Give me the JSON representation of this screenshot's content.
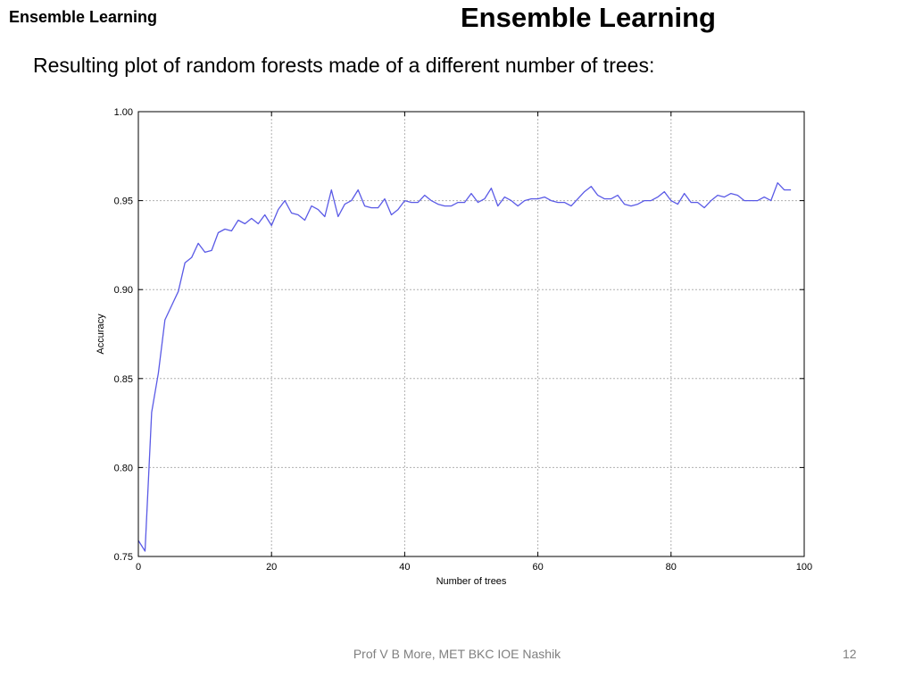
{
  "slide": {
    "corner_title": "Ensemble Learning",
    "title": "Ensemble Learning",
    "subtitle": "Resulting plot of random forests made of a different number of trees:",
    "footer": "Prof V B More, MET BKC IOE Nashik",
    "page_number": "12"
  },
  "chart_data": {
    "type": "line",
    "title": "",
    "xlabel": "Number of trees",
    "ylabel": "Accuracy",
    "xlim": [
      0,
      100
    ],
    "ylim": [
      0.75,
      1.0
    ],
    "xticks": [
      0,
      20,
      40,
      60,
      80,
      100
    ],
    "yticks": [
      0.75,
      0.8,
      0.85,
      0.9,
      0.95,
      1.0
    ],
    "xtick_labels": [
      "0",
      "20",
      "40",
      "60",
      "80",
      "100"
    ],
    "ytick_labels": [
      "0.75",
      "0.80",
      "0.85",
      "0.90",
      "0.95",
      "1.00"
    ],
    "grid": true,
    "series": [
      {
        "color": "#5a5ae6",
        "x": [
          0,
          1,
          2,
          3,
          4,
          5,
          6,
          7,
          8,
          9,
          10,
          11,
          12,
          13,
          14,
          15,
          16,
          17,
          18,
          19,
          20,
          21,
          22,
          23,
          24,
          25,
          26,
          27,
          28,
          29,
          30,
          31,
          32,
          33,
          34,
          35,
          36,
          37,
          38,
          39,
          40,
          41,
          42,
          43,
          44,
          45,
          46,
          47,
          48,
          49,
          50,
          51,
          52,
          53,
          54,
          55,
          56,
          57,
          58,
          59,
          60,
          61,
          62,
          63,
          64,
          65,
          66,
          67,
          68,
          69,
          70,
          71,
          72,
          73,
          74,
          75,
          76,
          77,
          78,
          79,
          80,
          81,
          82,
          83,
          84,
          85,
          86,
          87,
          88,
          89,
          90,
          91,
          92,
          93,
          94,
          95,
          96,
          97,
          98
        ],
        "y": [
          0.759,
          0.753,
          0.831,
          0.853,
          0.883,
          0.891,
          0.899,
          0.915,
          0.918,
          0.926,
          0.921,
          0.922,
          0.932,
          0.934,
          0.933,
          0.939,
          0.937,
          0.94,
          0.937,
          0.942,
          0.936,
          0.945,
          0.95,
          0.943,
          0.942,
          0.939,
          0.947,
          0.945,
          0.941,
          0.956,
          0.941,
          0.948,
          0.95,
          0.956,
          0.947,
          0.946,
          0.946,
          0.951,
          0.942,
          0.945,
          0.95,
          0.949,
          0.949,
          0.953,
          0.95,
          0.948,
          0.947,
          0.947,
          0.949,
          0.949,
          0.954,
          0.949,
          0.951,
          0.957,
          0.947,
          0.952,
          0.95,
          0.947,
          0.95,
          0.951,
          0.951,
          0.952,
          0.95,
          0.949,
          0.949,
          0.947,
          0.951,
          0.955,
          0.958,
          0.953,
          0.951,
          0.951,
          0.953,
          0.948,
          0.947,
          0.948,
          0.95,
          0.95,
          0.952,
          0.955,
          0.95,
          0.948,
          0.954,
          0.949,
          0.949,
          0.946,
          0.95,
          0.953,
          0.952,
          0.954,
          0.953,
          0.95,
          0.95,
          0.95,
          0.952,
          0.95,
          0.96,
          0.956,
          0.956
        ]
      }
    ]
  }
}
